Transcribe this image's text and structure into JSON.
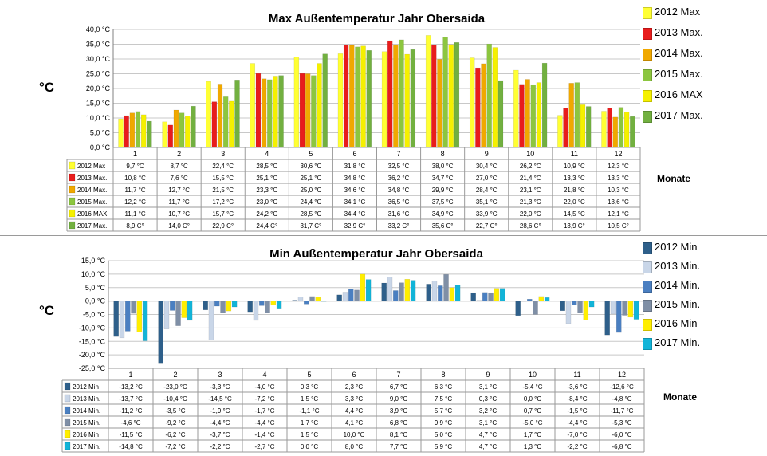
{
  "chart_data": [
    {
      "type": "bar",
      "title": "Max Außentemperatur Jahr Obersaida",
      "ylabel": "°C",
      "xlabel": "Monate",
      "ylim": [
        0,
        40
      ],
      "y_ticks": [
        "0,0 °C",
        "5,0 °C",
        "10,0 °C",
        "15,0 °C",
        "20,0 °C",
        "25,0 °C",
        "30,0 °C",
        "35,0 °C",
        "40,0 °C"
      ],
      "grid": true,
      "legend": "right",
      "categories": [
        "1",
        "2",
        "3",
        "4",
        "5",
        "6",
        "7",
        "8",
        "9",
        "10",
        "11",
        "12"
      ],
      "series": [
        {
          "name": "2012 Max",
          "color": "#ffff33",
          "values": [
            9.7,
            8.7,
            22.4,
            28.5,
            30.6,
            31.8,
            32.5,
            38.0,
            30.4,
            26.2,
            10.9,
            12.3
          ],
          "labels": [
            "9,7 °C",
            "8,7 °C",
            "22,4 °C",
            "28,5 °C",
            "30,6 °C",
            "31,8 °C",
            "32,5 °C",
            "38,0 °C",
            "30,4 °C",
            "26,2 °C",
            "10,9 °C",
            "12,3 °C"
          ]
        },
        {
          "name": "2013 Max.",
          "color": "#e81c1c",
          "values": [
            10.8,
            7.6,
            15.5,
            25.1,
            25.1,
            34.8,
            36.2,
            34.7,
            27.0,
            21.4,
            13.3,
            13.3
          ],
          "labels": [
            "10,8 °C",
            "7,6 °C",
            "15,5 °C",
            "25,1 °C",
            "25,1 °C",
            "34,8 °C",
            "36,2 °C",
            "34,7 °C",
            "27,0 °C",
            "21,4 °C",
            "13,3 °C",
            "13,3 °C"
          ]
        },
        {
          "name": "2014 Max.",
          "color": "#f0a800",
          "values": [
            11.7,
            12.7,
            21.5,
            23.3,
            25.0,
            34.6,
            34.8,
            29.9,
            28.4,
            23.1,
            21.8,
            10.3
          ],
          "labels": [
            "11,7 °C",
            "12,7 °C",
            "21,5 °C",
            "23,3 °C",
            "25,0 °C",
            "34,6 °C",
            "34,8 °C",
            "29,9 °C",
            "28,4 °C",
            "23,1 °C",
            "21,8 °C",
            "10,3 °C"
          ]
        },
        {
          "name": "2015 Max.",
          "color": "#8cc63f",
          "values": [
            12.2,
            11.7,
            17.2,
            23.0,
            24.4,
            34.1,
            36.5,
            37.5,
            35.1,
            21.3,
            22.0,
            13.6
          ],
          "labels": [
            "12,2 °C",
            "11,7 °C",
            "17,2 °C",
            "23,0 °C",
            "24,4 °C",
            "34,1 °C",
            "36,5 °C",
            "37,5 °C",
            "35,1 °C",
            "21,3 °C",
            "22,0 °C",
            "13,6 °C"
          ]
        },
        {
          "name": "2016 MAX",
          "color": "#f5f000",
          "values": [
            11.1,
            10.7,
            15.7,
            24.2,
            28.5,
            34.4,
            31.6,
            34.9,
            33.9,
            22.0,
            14.5,
            12.1
          ],
          "labels": [
            "11,1 °C",
            "10,7 °C",
            "15,7 °C",
            "24,2 °C",
            "28,5 °C",
            "34,4 °C",
            "31,6 °C",
            "34,9 °C",
            "33,9 °C",
            "22,0 °C",
            "14,5 °C",
            "12,1 °C"
          ]
        },
        {
          "name": "2017 Max.",
          "color": "#72b040",
          "values": [
            8.9,
            14.0,
            22.9,
            24.4,
            31.7,
            32.9,
            33.2,
            35.6,
            22.7,
            28.6,
            13.9,
            10.5
          ],
          "labels": [
            "8,9 C°",
            "14,0 C°",
            "22,9 C°",
            "24,4 C°",
            "31,7 C°",
            "32,9 C°",
            "33,2 C°",
            "35,6 C°",
            "22,7 C°",
            "28,6 C°",
            "13,9 C°",
            "10,5 C°"
          ]
        }
      ]
    },
    {
      "type": "bar",
      "title": "Min  Außentemperatur Jahr Obersaida",
      "ylabel": "°C",
      "xlabel": "Monate",
      "ylim": [
        -25,
        15
      ],
      "y_ticks": [
        "-25,0 °C",
        "-20,0 °C",
        "-15,0 °C",
        "-10,0 °C",
        "-5,0 °C",
        "0,0 °C",
        "5,0 °C",
        "10,0 °C",
        "15,0 °C"
      ],
      "grid": true,
      "legend": "right",
      "categories": [
        "1",
        "2",
        "3",
        "4",
        "5",
        "6",
        "7",
        "8",
        "9",
        "10",
        "11",
        "12"
      ],
      "series": [
        {
          "name": "2012 Min",
          "color": "#2e5f8a",
          "values": [
            -13.2,
            -23.0,
            -3.3,
            -4.0,
            0.3,
            2.3,
            6.7,
            6.3,
            3.1,
            -5.4,
            -3.6,
            -12.6
          ],
          "labels": [
            "-13,2 °C",
            "-23,0 °C",
            "-3,3 °C",
            "-4,0 °C",
            "0,3 °C",
            "2,3 °C",
            "6,7 °C",
            "6,3 °C",
            "3,1 °C",
            "-5,4 °C",
            "-3,6 °C",
            "-12,6 °C"
          ]
        },
        {
          "name": "2013 Min.",
          "color": "#c9d6e8",
          "values": [
            -13.7,
            -10.4,
            -14.5,
            -7.2,
            1.5,
            3.3,
            9.0,
            7.5,
            0.3,
            0.0,
            -8.4,
            -4.8
          ],
          "labels": [
            "-13,7 °C",
            "-10,4 °C",
            "-14,5 °C",
            "-7,2 °C",
            "1,5 °C",
            "3,3 °C",
            "9,0 °C",
            "7,5 °C",
            "0,3 °C",
            "0,0 °C",
            "-8,4 °C",
            "-4,8 °C"
          ]
        },
        {
          "name": "2014 Min.",
          "color": "#4a7fc1",
          "values": [
            -11.2,
            -3.5,
            -1.9,
            -1.7,
            -1.1,
            4.4,
            3.9,
            5.7,
            3.2,
            0.7,
            -1.5,
            -11.7
          ],
          "labels": [
            "-11,2 °C",
            "-3,5 °C",
            "-1,9 °C",
            "-1,7 °C",
            "-1,1 °C",
            "4,4 °C",
            "3,9 °C",
            "5,7 °C",
            "3,2 °C",
            "0,7 °C",
            "-1,5 °C",
            "-11,7 °C"
          ]
        },
        {
          "name": "2015 Min.",
          "color": "#7f8fa6",
          "values": [
            -4.6,
            -9.2,
            -4.4,
            -4.4,
            1.7,
            4.1,
            6.8,
            9.9,
            3.1,
            -5.0,
            -4.4,
            -5.3
          ],
          "labels": [
            "-4,6 °C",
            "-9,2 °C",
            "-4,4 °C",
            "-4,4 °C",
            "1,7 °C",
            "4,1 °C",
            "6,8 °C",
            "9,9 °C",
            "3,1 °C",
            "-5,0 °C",
            "-4,4 °C",
            "-5,3 °C"
          ]
        },
        {
          "name": "2016 Min",
          "color": "#ffee00",
          "values": [
            -11.5,
            -6.2,
            -3.7,
            -1.4,
            1.5,
            10.0,
            8.1,
            5.0,
            4.7,
            1.7,
            -7.0,
            -6.0
          ],
          "labels": [
            "-11,5 °C",
            "-6,2 °C",
            "-3,7 °C",
            "-1,4 °C",
            "1,5 °C",
            "10,0 °C",
            "8,1 °C",
            "5,0 °C",
            "4,7 °C",
            "1,7 °C",
            "-7,0 °C",
            "-6,0 °C"
          ]
        },
        {
          "name": "2017 Min.",
          "color": "#12b4d8",
          "values": [
            -14.8,
            -7.2,
            -2.2,
            -2.7,
            0.0,
            8.0,
            7.7,
            5.9,
            4.7,
            1.3,
            -2.2,
            -6.8
          ],
          "labels": [
            "-14,8 °C",
            "-7,2 °C",
            "-2,2 °C",
            "-2,7 °C",
            "0,0 °C",
            "8,0 °C",
            "7,7 °C",
            "5,9 °C",
            "4,7 °C",
            "1,3 °C",
            "-2,2 °C",
            "-6,8 °C"
          ]
        }
      ]
    }
  ]
}
